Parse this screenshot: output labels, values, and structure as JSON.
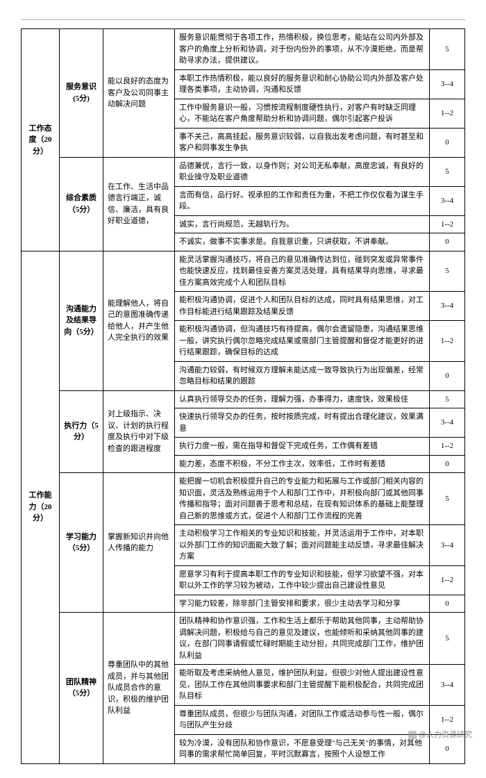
{
  "categories": [
    {
      "name": "工作态度（20分）",
      "subs": [
        {
          "name": "服务意识(5分)",
          "def": "能以良好的态度为客户及公司同事主动解决问题",
          "rows": [
            {
              "desc": "服务意识能贯彻于各项工作，热情积极，换位思考，能站在公司内外部及客户的角度上分析和协调，对于份内份外的事项，从不冷漠拒绝，而是帮助寻求办法，提供建议。",
              "score": "5"
            },
            {
              "desc": "本职工作热情积极，能以良好的服务意识和耐心协助公司内外部及客户处理各类事项，主动协调，沟通和反馈",
              "score": "3--4"
            },
            {
              "desc": "工作中服务意识一般，习惯按流程制度硬性执行，对客户有时缺乏同理心，不能站在客户角度帮助分析和协调问题，偶尔引起客户投诉",
              "score": "1--2"
            },
            {
              "desc": "事不关己，高高挂起，服务意识较弱，以自我出发考虑问题，有时甚至和客户和同事发生争执",
              "score": "0"
            }
          ]
        },
        {
          "name": "综合素质（5分）",
          "def": "在工作、生活中品德言行端正，诚信、廉洁，具有良好职业道德，",
          "rows": [
            {
              "desc": "品德兼优，言行一致，以身作则；对公司无私奉献，高度忠诚，有良好的职业操守及职业道德",
              "score": "5"
            },
            {
              "desc": "言而有信，品行好。视承担的工作和责任为重，不把工作仅仅看为谋生手段。",
              "score": "3--4"
            },
            {
              "desc": "诚实，言行尚规范，无越轨行为。",
              "score": "1--2"
            },
            {
              "desc": "不诚实，做事不实事求是。自我意识重，只讲获取，不讲奉献。",
              "score": "0"
            }
          ]
        }
      ]
    },
    {
      "name": "工作能力（20分）",
      "subs": [
        {
          "name": "沟通能力及结果导向（5分）",
          "def": "能理解他人，将自己的意图准确传递给他人，并产生他人完全执行的效果",
          "rows": [
            {
              "desc": "能灵活掌握沟通技巧，将自己的意见准确传达到位，碰到突发或异常事件也能快速反应，找到最佳妥善方案灵活处理，具有结果导向思维，寻求最佳方案高效完成个人和团队目标",
              "score": "5"
            },
            {
              "desc": "能积极沟通协调，促进个人和团队目标的达成，同时具有结果思维，对工作目标能进行结果跟踪及结果反馈",
              "score": "3--4"
            },
            {
              "desc": "能积极沟通协调，但沟通技巧有待提高，偶尔会遗留隐患，沟通结果思维一般，讲究执行偶尔忽略完成结果或需部门主管提醒和督促才能更好的进行结果跟踪，确保目标的达成",
              "score": "1--2"
            },
            {
              "desc": "沟通能力较弱，有时候双方理解未能达成一致导致执行为出现偏差，经常忽略目标和结果的跟踪",
              "score": "0"
            }
          ]
        },
        {
          "name": "执行力（5分）",
          "def": "对上级指示、决议、计划的执行程度及执行中对下级检查的跟进程度",
          "rows": [
            {
              "desc": "认真执行领导交办的任务，理解力强，办事得力，速度快，效果极佳",
              "score": "5"
            },
            {
              "desc": "快速执行领导交办的任务，按时按质完成，时有提出合理化建议，效果满意",
              "score": "3--4"
            },
            {
              "desc": "执行力度一般，需在指导和督促下完成任务，工作偶有差错",
              "score": "1--2"
            },
            {
              "desc": "能力差，态度不积极，不分工作主次，效率低，工作时有差错",
              "score": "0"
            }
          ]
        },
        {
          "name": "学习能力（5分）",
          "def": "掌握新知识并向他人传播的能力",
          "rows": [
            {
              "desc": "能把握一切机会积极提升自己的专业能力和拓展与工作或部门相关内容的知识面，灵活及熟练运用于个人和部门工作中，并积极向部门或其他同事传播和指导；面对问题善于思考和总结，在现有知识体系的基础上能整理自己新的思维或方式，促进个人和部门工作流程的完善",
              "score": "5"
            },
            {
              "desc": "主动积极学习工作相关的专业知识和技能，并灵活运用于工作中，对本职以外部门工作的知识面能大致了解；面对问题能主动反馈，寻求最佳解决方案",
              "score": "3--4"
            },
            {
              "desc": "愿意学习有利于提高本职工作的专业知识和技能，但学习欲望不强，对本职以外工作的学习较为被动，工作中较少提出自己建设性意见",
              "score": "1--2"
            },
            {
              "desc": "学习能力较差，除非部门主管安排和要求，很少主动去学习和分享",
              "score": "0"
            }
          ]
        },
        {
          "name": "团队精神（5分）",
          "def": "尊重团队中的其他成员，并与其他团队成员合作的意识，积极的维护团队利益",
          "rows": [
            {
              "desc": "团队精神和协作意识强，工作和生活上都乐于帮助其他同事，主动帮助协调解决问题，积极给与自己的意见及建议，也能倾听和采纳其他同事的建议，在部门同事请假或忙碌时期能主动分担，共同完成部门工作，维护团队利益",
              "score": "5"
            },
            {
              "desc": "能听取及考虑采纳他人意见，维护团队利益，但很少对他人提出建设性意见，团队工作在其他同事要求和部门主管提醒下能积极配合，共同完成团队目标",
              "score": "3--4"
            },
            {
              "desc": "尊重团队成员，但很少与团队沟通，对团队工作或活动参与性一般，偶尔与团队产生分歧",
              "score": "1--2"
            },
            {
              "desc": "较为冷漠，没有团队和协作意识，不愿意受理\"与己无关\"的事情，对其他同事的需求帮忙简单回复，平时沉默寡言，按照个人设想工作",
              "score": "0"
            }
          ]
        }
      ]
    }
  ],
  "watermark": "@人力资源研究"
}
